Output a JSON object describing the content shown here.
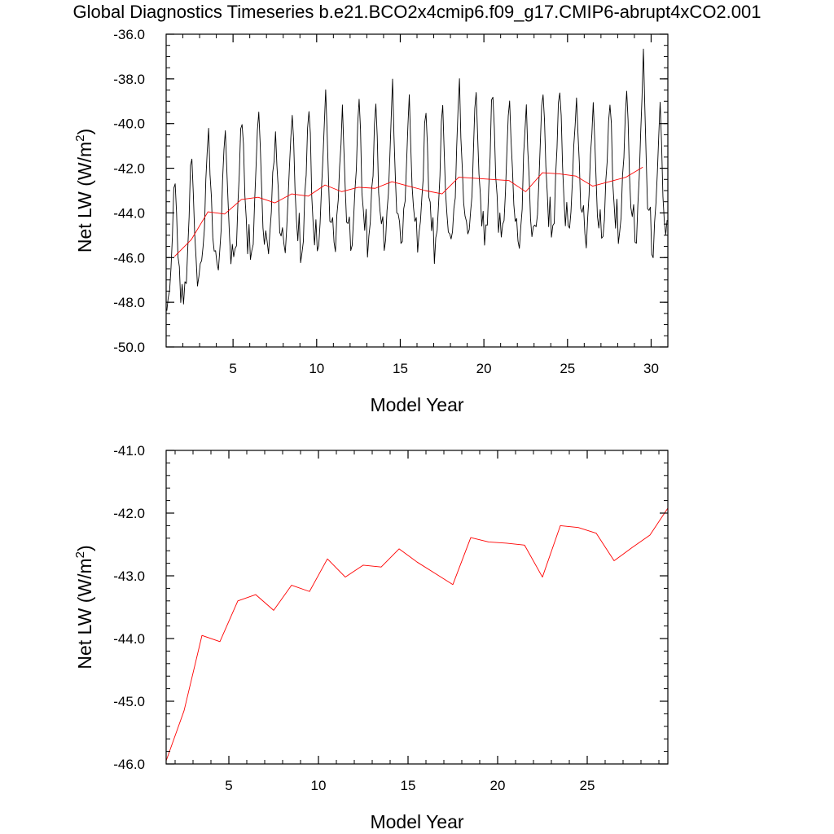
{
  "title": "Global Diagnostics Timeseries b.e21.BCO2x4cmip6.f09_g17.CMIP6-abrupt4xCO2.001",
  "colors": {
    "monthly": "#000000",
    "annual": "#ff0000",
    "axis": "#000000"
  },
  "chart_data": [
    {
      "type": "line",
      "xlabel": "Model Year",
      "ylabel_main": "Net LW (W/m",
      "ylabel_sup": "2",
      "ylabel_close": ")",
      "xlim": [
        1.0,
        31.0
      ],
      "ylim": [
        -50.0,
        -36.0
      ],
      "x_ticks": [
        5,
        10,
        15,
        20,
        25,
        30
      ],
      "x_tick_labels": [
        "5",
        "10",
        "15",
        "20",
        "25",
        "30"
      ],
      "y_ticks": [
        -50,
        -48,
        -46,
        -44,
        -42,
        -40,
        -38,
        -36
      ],
      "y_tick_labels": [
        "-50.0",
        "-48.0",
        "-46.0",
        "-44.0",
        "-42.0",
        "-40.0",
        "-38.0",
        "-36.0"
      ],
      "series": [
        {
          "name": "monthly",
          "color": "#000000",
          "x_start": 1.04,
          "x_step": 0.08333,
          "annual_cycle": [
            -2.7,
            -2.4,
            -1.6,
            -0.4,
            1.1,
            2.9,
            3.9,
            2.2,
            0.2,
            -1.1,
            -1.9,
            -1.4
          ],
          "annual_means": [
            -45.95,
            -45.2,
            -43.95,
            -44.05,
            -43.4,
            -43.3,
            -43.55,
            -43.15,
            -43.25,
            -42.75,
            -43.05,
            -42.85,
            -42.9,
            -42.6,
            -42.8,
            -43.0,
            -43.15,
            -42.4,
            -42.45,
            -42.5,
            -42.55,
            -43.05,
            -42.2,
            -42.25,
            -42.35,
            -42.8,
            -42.6,
            -42.4,
            -41.95,
            -43.2
          ],
          "amplitude_scale": [
            0.9,
            1.0,
            0.95,
            1.0,
            1.0,
            1.05,
            0.8,
            0.95,
            1.05,
            1.05,
            0.9,
            1.0,
            0.95,
            1.05,
            0.95,
            0.9,
            1.0,
            1.05,
            1.0,
            1.05,
            0.95,
            1.0,
            1.0,
            1.05,
            0.9,
            0.95,
            0.95,
            1.0,
            1.25,
            1.0
          ]
        },
        {
          "name": "annual",
          "color": "#ff0000",
          "x": [
            1.5,
            2.5,
            3.5,
            4.5,
            5.5,
            6.5,
            7.5,
            8.5,
            9.5,
            10.5,
            11.5,
            12.5,
            13.5,
            14.5,
            15.5,
            16.5,
            17.5,
            18.5,
            19.5,
            20.5,
            21.5,
            22.5,
            23.5,
            24.5,
            25.5,
            26.5,
            27.5,
            28.5,
            29.5
          ],
          "y": [
            -45.95,
            -45.2,
            -43.95,
            -44.05,
            -43.4,
            -43.3,
            -43.55,
            -43.15,
            -43.25,
            -42.75,
            -43.05,
            -42.85,
            -42.9,
            -42.6,
            -42.8,
            -43.0,
            -43.15,
            -42.4,
            -42.45,
            -42.5,
            -42.55,
            -43.05,
            -42.2,
            -42.25,
            -42.35,
            -42.8,
            -42.6,
            -42.4,
            -41.95
          ]
        }
      ]
    },
    {
      "type": "line",
      "xlabel": "Model Year",
      "ylabel_main": "Net LW (W/m",
      "ylabel_sup": "2",
      "ylabel_close": ")",
      "xlim": [
        1.5,
        29.5
      ],
      "ylim": [
        -46.0,
        -41.0
      ],
      "x_ticks": [
        5,
        10,
        15,
        20,
        25
      ],
      "x_tick_labels": [
        "5",
        "10",
        "15",
        "20",
        "25"
      ],
      "y_ticks": [
        -46,
        -45,
        -44,
        -43,
        -42,
        -41
      ],
      "y_tick_labels": [
        "-46.0",
        "-45.0",
        "-44.0",
        "-43.0",
        "-42.0",
        "-41.0"
      ],
      "series": [
        {
          "name": "annual",
          "color": "#ff0000",
          "x": [
            1.5,
            2.5,
            3.5,
            4.5,
            5.5,
            6.5,
            7.5,
            8.5,
            9.5,
            10.5,
            11.5,
            12.5,
            13.5,
            14.5,
            15.5,
            16.5,
            17.5,
            18.5,
            19.5,
            20.5,
            21.5,
            22.5,
            23.5,
            24.5,
            25.5,
            26.5,
            27.5,
            28.5,
            29.5
          ],
          "y": [
            -45.95,
            -45.15,
            -43.95,
            -44.05,
            -43.4,
            -43.3,
            -43.55,
            -43.15,
            -43.25,
            -42.73,
            -43.02,
            -42.83,
            -42.86,
            -42.57,
            -42.78,
            -42.96,
            -43.14,
            -42.39,
            -42.46,
            -42.48,
            -42.51,
            -43.02,
            -42.2,
            -42.23,
            -42.32,
            -42.76,
            -42.55,
            -42.35,
            -41.92
          ]
        }
      ]
    }
  ]
}
